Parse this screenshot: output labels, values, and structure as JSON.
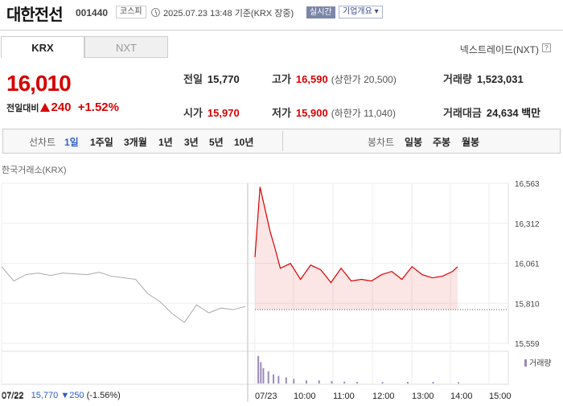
{
  "stock": {
    "name": "대한전선",
    "code": "001440",
    "market": "코스피",
    "base_time": "2025.07.23 13:48 기준(KRX 장중)",
    "realtime": "실시간",
    "corp_info": "기업개요 ▾"
  },
  "tabs": {
    "krx": "KRX",
    "nxt": "NXT"
  },
  "nextrade": "넥스트레이드(NXT)",
  "help": "?",
  "price": {
    "current": "16,010",
    "change_label": "전일대비",
    "change_value": "240",
    "change_pct": "+1.52%"
  },
  "stats": {
    "prev_close": {
      "label": "전일",
      "value": "15,770"
    },
    "high": {
      "label": "고가",
      "value": "16,590",
      "extra": "(상한가 20,500)"
    },
    "volume": {
      "label": "거래량",
      "value": "1,523,031"
    },
    "open": {
      "label": "시가",
      "value": "15,970"
    },
    "low": {
      "label": "저가",
      "value": "15,900",
      "extra": "(하한가 11,040)"
    },
    "amount": {
      "label": "거래대금",
      "value": "24,634 백만"
    }
  },
  "period_bar": {
    "line_label": "선차트",
    "line_items": [
      "1일",
      "1주일",
      "3개월",
      "1년",
      "3년",
      "5년",
      "10년"
    ],
    "active": "1일",
    "candle_label": "봉차트",
    "candle_items": [
      "일봉",
      "주봉",
      "월봉"
    ]
  },
  "chart_source": "한국거래소(KRX)",
  "volume_legend": "거래량",
  "prev_day_info": {
    "date": "07/22",
    "close": "15,770",
    "change": "▼250",
    "pct": "(-1.56%)"
  },
  "colors": {
    "up": "#d60000",
    "down": "#2c5cc5",
    "active": "#3060c8"
  },
  "chart_data": {
    "type": "line",
    "y_ticks": [
      "16,563",
      "16,312",
      "16,061",
      "15,810",
      "15,559"
    ],
    "ylim": [
      15559,
      16563
    ],
    "x_ticks": [
      "07/22",
      "07/23",
      "10:00",
      "11:00",
      "12:00",
      "13:00",
      "14:00",
      "15:00"
    ],
    "reference_line": 15770,
    "series": [
      {
        "name": "",
        "color": "#aaaaaa",
        "x": [
          0,
          0.05,
          0.1,
          0.15,
          0.2,
          0.25,
          0.3,
          0.35,
          0.4,
          0.45,
          0.5,
          0.55,
          0.6,
          0.65,
          0.7,
          0.75,
          0.8,
          0.85,
          0.9,
          0.95,
          1
        ],
        "values": [
          16040,
          15950,
          15990,
          16000,
          15985,
          16000,
          15995,
          15990,
          16005,
          15980,
          15970,
          15960,
          15870,
          15820,
          15745,
          15690,
          15800,
          15750,
          15780,
          15770,
          15790
        ]
      },
      {
        "name": "",
        "color": "#d60000",
        "x": [
          0,
          0.02,
          0.04,
          0.06,
          0.08,
          0.1,
          0.14,
          0.18,
          0.22,
          0.26,
          0.3,
          0.34,
          0.38,
          0.42,
          0.46,
          0.5,
          0.54,
          0.58,
          0.62,
          0.66,
          0.7,
          0.74,
          0.78,
          0.8
        ],
        "values": [
          16100,
          16540,
          16400,
          16260,
          16150,
          16030,
          16060,
          15960,
          16050,
          16020,
          15940,
          16030,
          15950,
          15960,
          15950,
          15990,
          16010,
          15960,
          16040,
          15990,
          15970,
          15980,
          16010,
          16040
        ]
      }
    ],
    "volume_series": [
      {
        "x": 0.01,
        "value": 0.9
      },
      {
        "x": 0.02,
        "value": 0.7
      },
      {
        "x": 0.03,
        "value": 0.5
      },
      {
        "x": 0.05,
        "value": 0.4
      },
      {
        "x": 0.07,
        "value": 0.3
      },
      {
        "x": 0.09,
        "value": 0.25
      },
      {
        "x": 0.12,
        "value": 0.2
      },
      {
        "x": 0.15,
        "value": 0.15
      },
      {
        "x": 0.2,
        "value": 0.1
      },
      {
        "x": 0.25,
        "value": 0.1
      },
      {
        "x": 0.3,
        "value": 0.08
      },
      {
        "x": 0.35,
        "value": 0.06
      },
      {
        "x": 0.4,
        "value": 0.05
      },
      {
        "x": 0.5,
        "value": 0.05
      },
      {
        "x": 0.6,
        "value": 0.05
      },
      {
        "x": 0.7,
        "value": 0.05
      },
      {
        "x": 0.8,
        "value": 0.04
      }
    ],
    "grid": true
  }
}
